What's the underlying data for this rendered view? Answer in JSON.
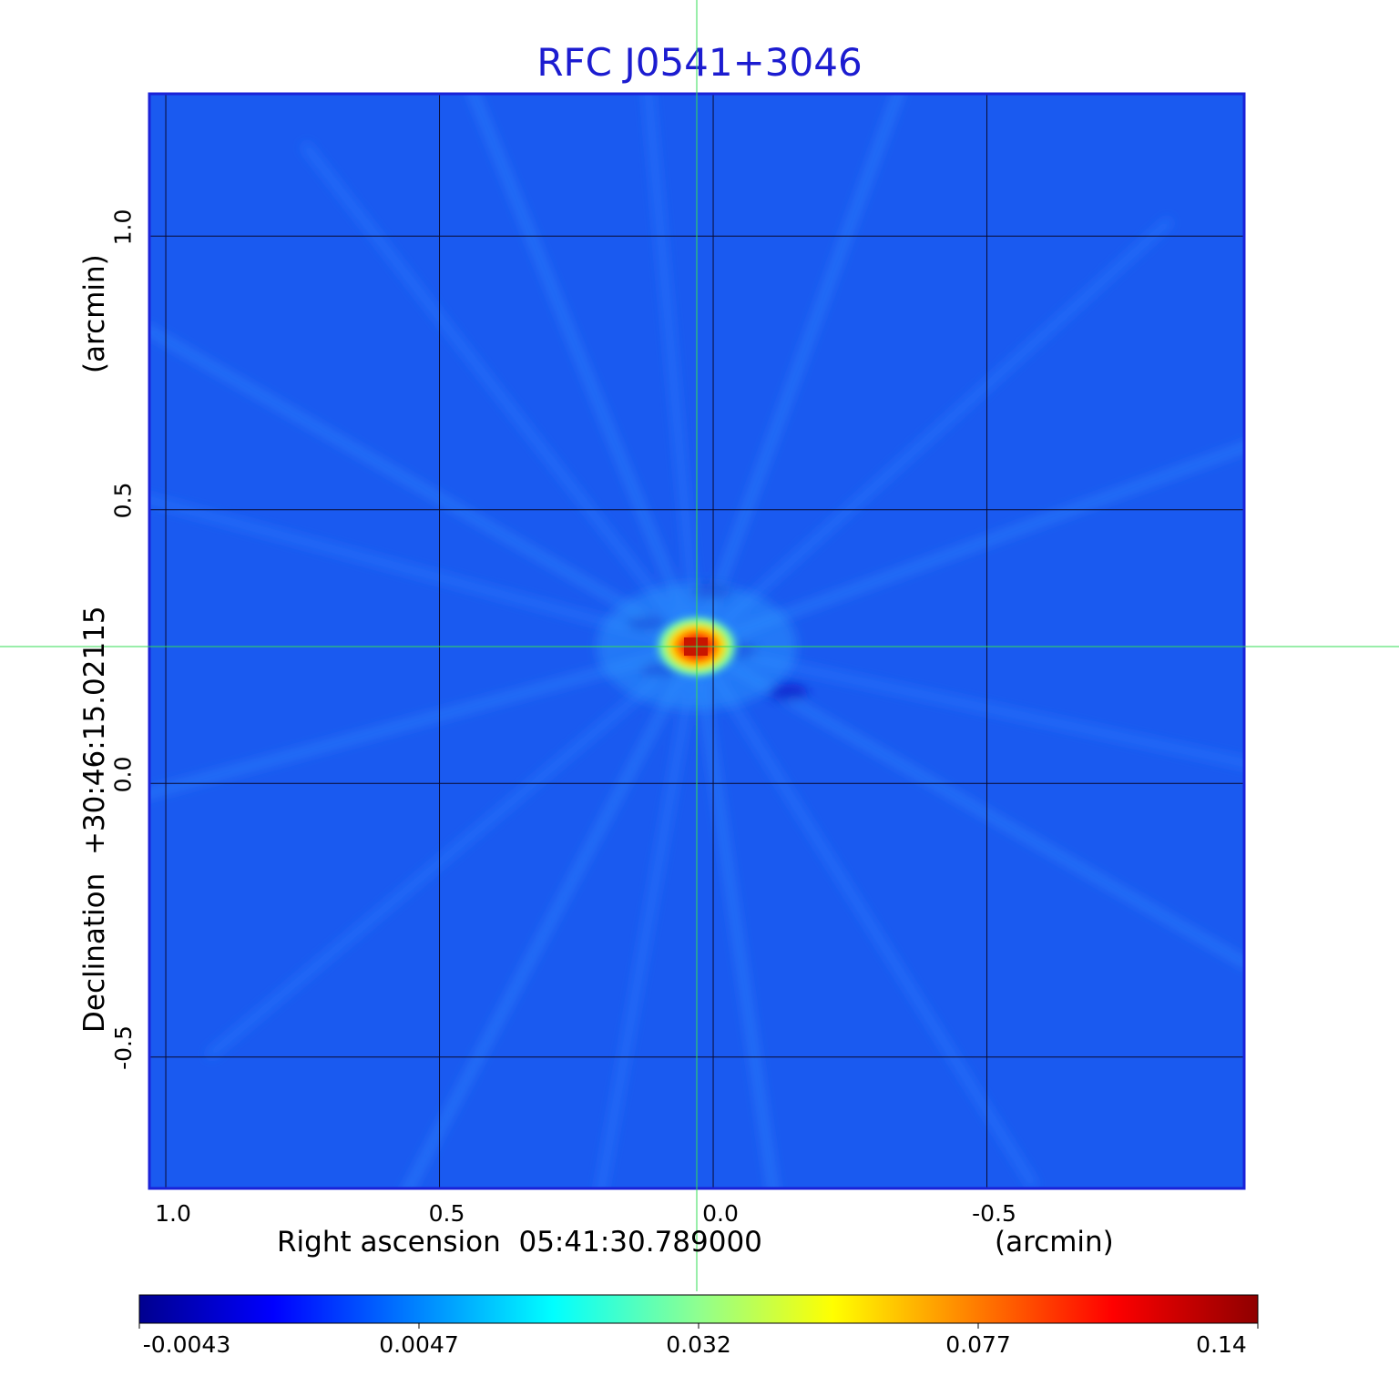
{
  "chart_data": {
    "type": "heatmap",
    "title": "RFC J0541+3046",
    "xlabel": "Right ascension  05:41:30.789000",
    "xunit": "(arcmin)",
    "ylabel": "Declination  +30:46:15.02115",
    "yunit": "(arcmin)",
    "x_ticks": [
      "1.0",
      "0.5",
      "0.0",
      "-0.5"
    ],
    "y_ticks": [
      "1.0",
      "0.5",
      "0.0",
      "-0.5"
    ],
    "xlim": [
      1.03,
      -0.97
    ],
    "ylim": [
      -0.74,
      1.26
    ],
    "grid": true,
    "peak": {
      "x": 0.03,
      "y": 0.25,
      "value": 0.14
    },
    "crosshair": {
      "x": 0.03,
      "y": 0.25,
      "color": "#33dd55"
    },
    "colorbar": {
      "ticks": [
        "-0.0043",
        "0.0047",
        "0.032",
        "0.077",
        "0.14"
      ],
      "range": [
        -0.0043,
        0.14
      ],
      "colormap": "jet"
    },
    "colors": {
      "title": "#1c1cd0",
      "frame": "#1a22d8",
      "background_field": "#1a5af0"
    }
  }
}
